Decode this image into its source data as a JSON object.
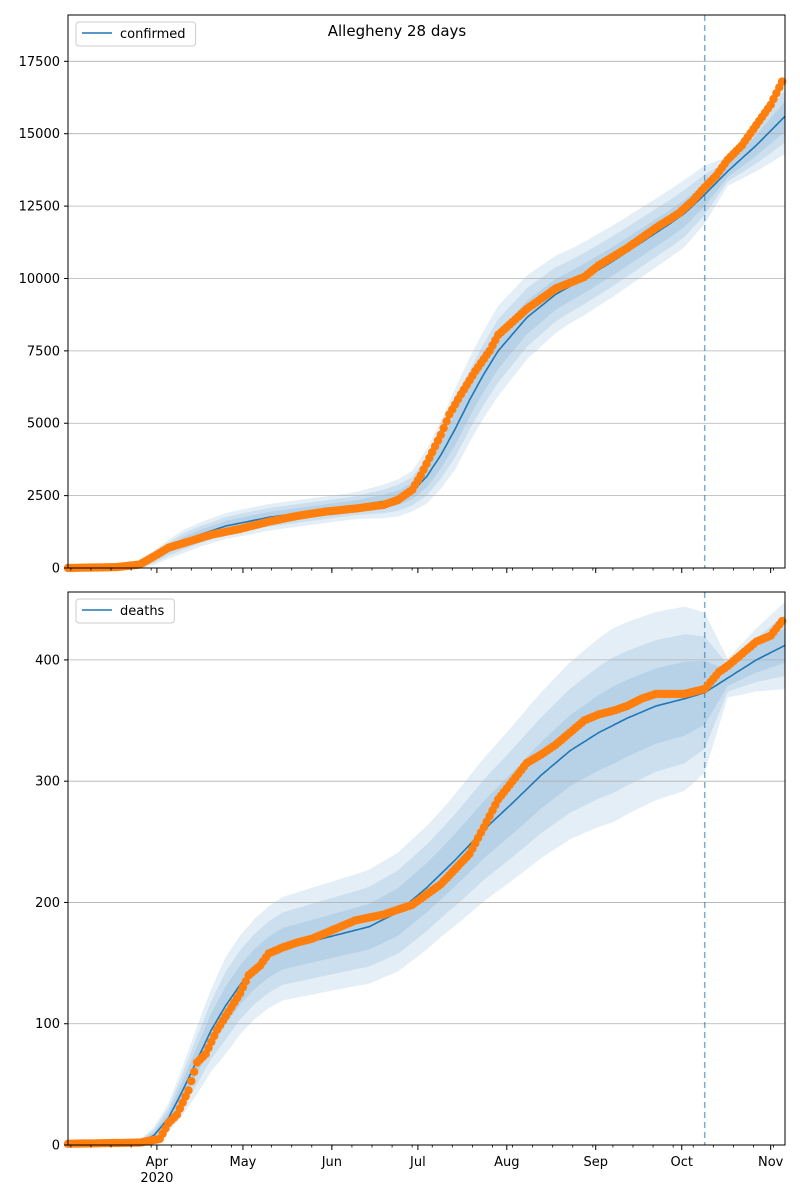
{
  "figure": {
    "title": "Allegheny 28 days"
  },
  "x_axis": {
    "month_labels": [
      "Apr",
      "May",
      "Jun",
      "Jul",
      "Aug",
      "Sep",
      "Oct",
      "Nov"
    ],
    "month_days": [
      31,
      61,
      92,
      122,
      153,
      184,
      214,
      245
    ],
    "year_label": "2020",
    "xlim_days": [
      0,
      250
    ],
    "date_origin": "2020-03-01",
    "minor_tick_every_days": 7,
    "minor_tick_start_day": 1
  },
  "forecast_day": 222,
  "colors": {
    "model": "#1f77b4",
    "observed": "#ff7f0e",
    "band": "#1f77b4",
    "grid": "#b0b0b0",
    "forecast_line": "#1f77b4"
  },
  "chart_data": [
    {
      "type": "line",
      "name": "confirmed",
      "legend": "confirmed",
      "legend_position": "top-left",
      "grid": "horizontal",
      "ylim": [
        0,
        19100
      ],
      "yticks": [
        0,
        2500,
        5000,
        7500,
        10000,
        12500,
        15000,
        17500
      ],
      "ytick_labels": [
        "0",
        "2500",
        "5000",
        "7500",
        "10000",
        "12500",
        "15000",
        "17500"
      ],
      "model_knots": [
        [
          0,
          0
        ],
        [
          17,
          30
        ],
        [
          25,
          120
        ],
        [
          30,
          350
        ],
        [
          35,
          650
        ],
        [
          40,
          900
        ],
        [
          46,
          1150
        ],
        [
          55,
          1450
        ],
        [
          70,
          1750
        ],
        [
          85,
          1950
        ],
        [
          100,
          2150
        ],
        [
          110,
          2300
        ],
        [
          115,
          2420
        ],
        [
          120,
          2650
        ],
        [
          125,
          3150
        ],
        [
          130,
          3900
        ],
        [
          135,
          4800
        ],
        [
          140,
          5800
        ],
        [
          145,
          6700
        ],
        [
          150,
          7500
        ],
        [
          160,
          8650
        ],
        [
          170,
          9450
        ],
        [
          180,
          10000
        ],
        [
          190,
          10600
        ],
        [
          200,
          11250
        ],
        [
          210,
          11900
        ],
        [
          215,
          12250
        ],
        [
          222,
          12900
        ],
        [
          230,
          13700
        ],
        [
          240,
          14600
        ],
        [
          250,
          15600
        ]
      ],
      "obs_knots": [
        [
          0,
          0
        ],
        [
          17,
          30
        ],
        [
          25,
          120
        ],
        [
          30,
          400
        ],
        [
          35,
          700
        ],
        [
          40,
          850
        ],
        [
          50,
          1150
        ],
        [
          60,
          1350
        ],
        [
          70,
          1600
        ],
        [
          80,
          1800
        ],
        [
          90,
          1950
        ],
        [
          100,
          2050
        ],
        [
          110,
          2180
        ],
        [
          115,
          2350
        ],
        [
          120,
          2700
        ],
        [
          123,
          3200
        ],
        [
          126,
          3800
        ],
        [
          130,
          4600
        ],
        [
          133,
          5300
        ],
        [
          137,
          6000
        ],
        [
          142,
          6800
        ],
        [
          147,
          7500
        ],
        [
          150,
          8050
        ],
        [
          155,
          8500
        ],
        [
          160,
          8950
        ],
        [
          170,
          9650
        ],
        [
          180,
          10050
        ],
        [
          185,
          10450
        ],
        [
          195,
          11050
        ],
        [
          205,
          11750
        ],
        [
          213,
          12250
        ],
        [
          218,
          12700
        ],
        [
          222,
          13150
        ],
        [
          226,
          13550
        ],
        [
          230,
          14100
        ],
        [
          235,
          14600
        ],
        [
          240,
          15300
        ],
        [
          245,
          16000
        ],
        [
          249,
          16800
        ]
      ],
      "obs_step_days": 1,
      "band_widths": [
        [
          0,
          0
        ],
        [
          20,
          50
        ],
        [
          40,
          200
        ],
        [
          60,
          230
        ],
        [
          100,
          230
        ],
        [
          120,
          350
        ],
        [
          135,
          700
        ],
        [
          150,
          780
        ],
        [
          175,
          640
        ],
        [
          200,
          600
        ],
        [
          215,
          580
        ],
        [
          222,
          500
        ],
        [
          230,
          250
        ],
        [
          250,
          650
        ]
      ],
      "band_scales": [
        2.0,
        1.4,
        0.8
      ]
    },
    {
      "type": "line",
      "name": "deaths",
      "legend": "deaths",
      "legend_position": "top-left",
      "grid": "horizontal",
      "ylim": [
        0,
        456
      ],
      "yticks": [
        0,
        100,
        200,
        300,
        400
      ],
      "ytick_labels": [
        "0",
        "100",
        "200",
        "300",
        "400"
      ],
      "model_knots": [
        [
          0,
          1
        ],
        [
          25,
          2
        ],
        [
          30,
          8
        ],
        [
          35,
          22
        ],
        [
          40,
          45
        ],
        [
          45,
          70
        ],
        [
          50,
          95
        ],
        [
          55,
          115
        ],
        [
          60,
          132
        ],
        [
          65,
          145
        ],
        [
          70,
          155
        ],
        [
          75,
          162
        ],
        [
          85,
          168
        ],
        [
          95,
          174
        ],
        [
          105,
          180
        ],
        [
          115,
          192
        ],
        [
          125,
          212
        ],
        [
          135,
          235
        ],
        [
          145,
          260
        ],
        [
          155,
          282
        ],
        [
          165,
          305
        ],
        [
          175,
          325
        ],
        [
          185,
          340
        ],
        [
          195,
          352
        ],
        [
          205,
          362
        ],
        [
          215,
          368
        ],
        [
          222,
          373
        ],
        [
          230,
          385
        ],
        [
          240,
          400
        ],
        [
          250,
          412
        ]
      ],
      "obs_knots": [
        [
          0,
          1
        ],
        [
          25,
          2
        ],
        [
          32,
          5
        ],
        [
          35,
          18
        ],
        [
          38,
          25
        ],
        [
          42,
          45
        ],
        [
          45,
          68
        ],
        [
          48,
          75
        ],
        [
          52,
          95
        ],
        [
          56,
          110
        ],
        [
          60,
          125
        ],
        [
          63,
          140
        ],
        [
          67,
          148
        ],
        [
          70,
          158
        ],
        [
          75,
          163
        ],
        [
          80,
          167
        ],
        [
          85,
          170
        ],
        [
          90,
          175
        ],
        [
          95,
          180
        ],
        [
          100,
          185
        ],
        [
          110,
          190
        ],
        [
          120,
          198
        ],
        [
          130,
          215
        ],
        [
          140,
          240
        ],
        [
          145,
          262
        ],
        [
          150,
          285
        ],
        [
          155,
          300
        ],
        [
          160,
          315
        ],
        [
          165,
          322
        ],
        [
          170,
          330
        ],
        [
          175,
          340
        ],
        [
          180,
          350
        ],
        [
          185,
          355
        ],
        [
          190,
          358
        ],
        [
          195,
          362
        ],
        [
          200,
          368
        ],
        [
          205,
          372
        ],
        [
          215,
          372
        ],
        [
          222,
          376
        ],
        [
          227,
          390
        ],
        [
          230,
          395
        ],
        [
          235,
          405
        ],
        [
          240,
          415
        ],
        [
          245,
          420
        ],
        [
          249,
          432
        ]
      ],
      "obs_step_days": 1,
      "band_widths": [
        [
          0,
          0
        ],
        [
          25,
          1
        ],
        [
          35,
          6
        ],
        [
          45,
          14
        ],
        [
          55,
          20
        ],
        [
          70,
          21
        ],
        [
          100,
          23
        ],
        [
          130,
          26
        ],
        [
          160,
          33
        ],
        [
          190,
          40
        ],
        [
          215,
          38
        ],
        [
          222,
          33
        ],
        [
          230,
          8
        ],
        [
          250,
          18
        ]
      ],
      "band_scales": [
        2.0,
        1.4,
        0.8
      ]
    }
  ]
}
